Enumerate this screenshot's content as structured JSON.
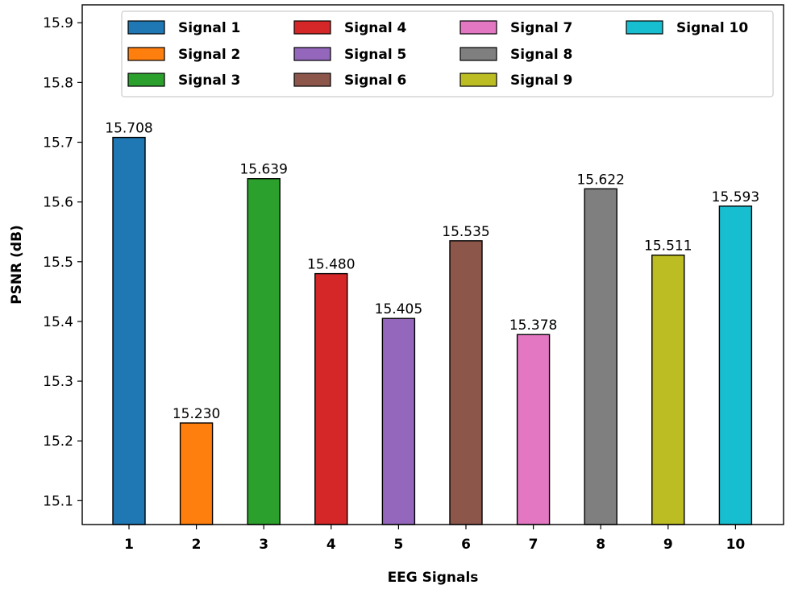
{
  "chart_data": {
    "type": "bar",
    "categories": [
      "1",
      "2",
      "3",
      "4",
      "5",
      "6",
      "7",
      "8",
      "9",
      "10"
    ],
    "values": [
      15.708,
      15.23,
      15.639,
      15.48,
      15.405,
      15.535,
      15.378,
      15.622,
      15.511,
      15.593
    ],
    "data_labels": [
      "15.708",
      "15.230",
      "15.639",
      "15.480",
      "15.405",
      "15.535",
      "15.378",
      "15.622",
      "15.511",
      "15.593"
    ],
    "series_names": [
      "Signal 1",
      "Signal 2",
      "Signal 3",
      "Signal 4",
      "Signal 5",
      "Signal 6",
      "Signal 7",
      "Signal 8",
      "Signal 9",
      "Signal 10"
    ],
    "colors": [
      "#1f77b4",
      "#ff7f0e",
      "#2ca02c",
      "#d62728",
      "#9467bd",
      "#8c564b",
      "#e377c2",
      "#7f7f7f",
      "#bcbd22",
      "#17becf"
    ],
    "xlabel": "EEG Signals",
    "ylabel": "PSNR (dB)",
    "ylim": [
      15.06,
      15.93
    ],
    "yticks": [
      15.1,
      15.2,
      15.3,
      15.4,
      15.5,
      15.6,
      15.7,
      15.8,
      15.9
    ],
    "ytick_labels": [
      "15.1",
      "15.2",
      "15.3",
      "15.4",
      "15.5",
      "15.6",
      "15.7",
      "15.8",
      "15.9"
    ],
    "grid": false,
    "legend": {
      "placement": "top-right",
      "columns": 4
    }
  }
}
